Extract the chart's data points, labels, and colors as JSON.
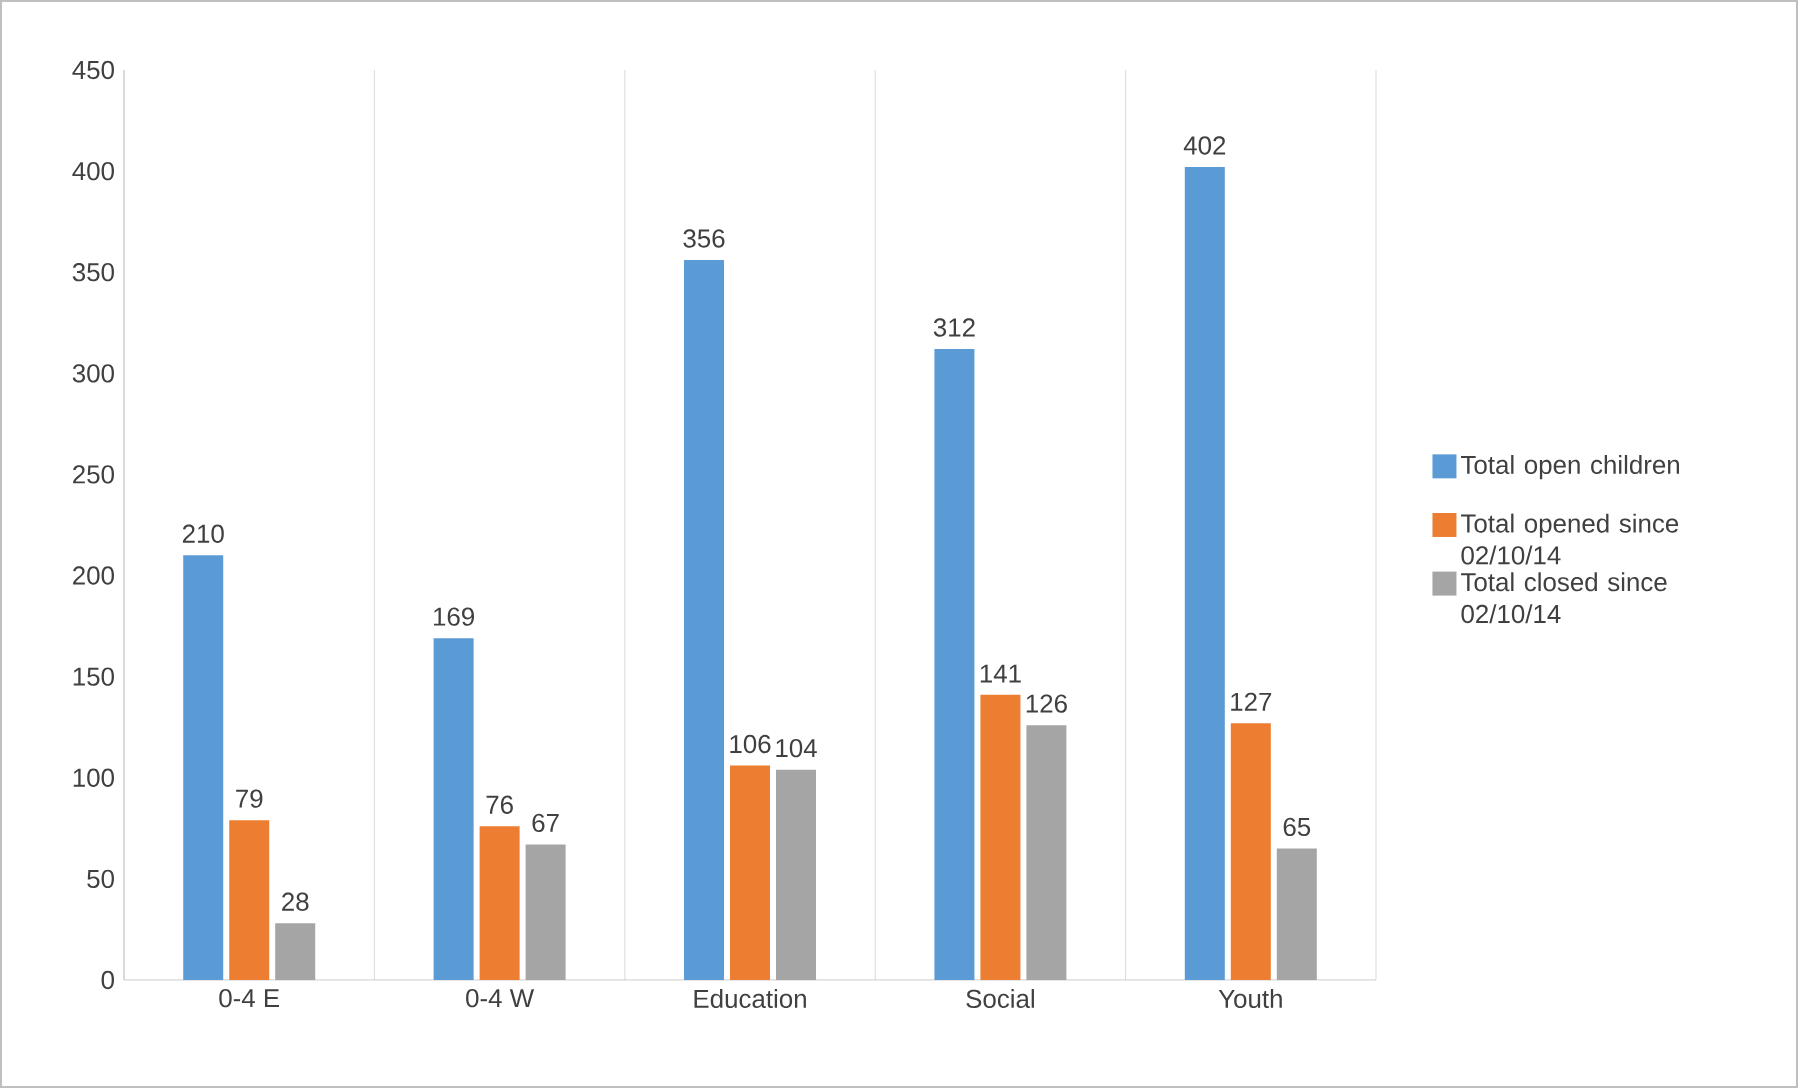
{
  "chart_data": {
    "type": "bar",
    "categories": [
      "0-4 E",
      "0-4 W",
      "Education",
      "Social",
      "Youth"
    ],
    "series": [
      {
        "name": "Total open children",
        "color": "#5b9bd5",
        "values": [
          210,
          169,
          356,
          312,
          402
        ]
      },
      {
        "name": "Total opened since 02/10/14",
        "color": "#ed7d31",
        "values": [
          79,
          76,
          106,
          141,
          127
        ]
      },
      {
        "name": "Total closed since 02/10/14",
        "color": "#a5a5a5",
        "values": [
          28,
          67,
          104,
          126,
          65
        ]
      }
    ],
    "ylim": [
      0,
      450
    ],
    "yticks": [
      0,
      50,
      100,
      150,
      200,
      250,
      300,
      350,
      400,
      450
    ],
    "grid": "x",
    "legend": "right",
    "data_labels": true
  }
}
